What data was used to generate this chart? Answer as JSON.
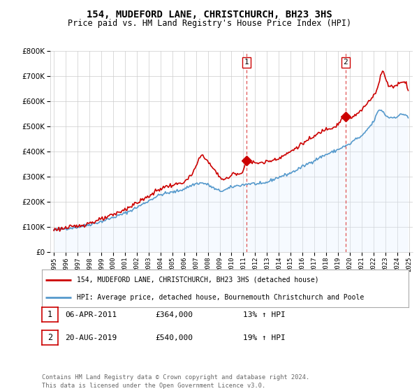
{
  "title": "154, MUDEFORD LANE, CHRISTCHURCH, BH23 3HS",
  "subtitle": "Price paid vs. HM Land Registry's House Price Index (HPI)",
  "legend_line1": "154, MUDEFORD LANE, CHRISTCHURCH, BH23 3HS (detached house)",
  "legend_line2": "HPI: Average price, detached house, Bournemouth Christchurch and Poole",
  "footer": "Contains HM Land Registry data © Crown copyright and database right 2024.\nThis data is licensed under the Open Government Licence v3.0.",
  "table_rows": [
    {
      "num": "1",
      "date": "06-APR-2011",
      "price": "£364,000",
      "hpi": "13% ↑ HPI"
    },
    {
      "num": "2",
      "date": "20-AUG-2019",
      "price": "£540,000",
      "hpi": "19% ↑ HPI"
    }
  ],
  "point1_x": 2011.26,
  "point1_y": 364000,
  "point2_x": 2019.63,
  "point2_y": 540000,
  "red_color": "#cc0000",
  "blue_color": "#5599cc",
  "blue_fill_color": "#ddeeff",
  "vline_color": "#dd4444",
  "background_color": "#ffffff",
  "grid_color": "#cccccc",
  "ylim": [
    0,
    800000
  ],
  "xlim_min": 1994.7,
  "xlim_max": 2025.3
}
